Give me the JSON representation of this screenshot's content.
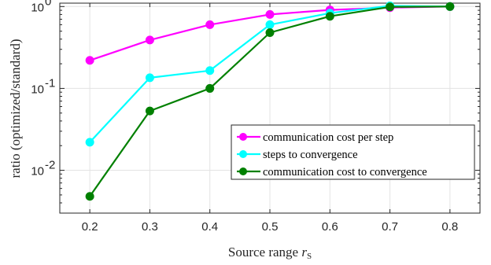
{
  "chart_data": {
    "type": "line",
    "xlabel": "Source range",
    "xlabel_symbol": "r",
    "xlabel_subscript": "S",
    "ylabel": "ratio (optimized/standard)",
    "x": [
      0.2,
      0.3,
      0.4,
      0.5,
      0.6,
      0.7,
      0.8
    ],
    "xlim": [
      0.15,
      0.85
    ],
    "ylim": [
      0.003,
      1.1
    ],
    "yscale": "log",
    "grid": true,
    "legend_position": "lower-right",
    "x_tick_labels": [
      "0.2",
      "0.3",
      "0.4",
      "0.5",
      "0.6",
      "0.7",
      "0.8"
    ],
    "y_ticks": [
      {
        "value": 0.01,
        "base": "10",
        "exp": "-2"
      },
      {
        "value": 0.1,
        "base": "10",
        "exp": "-1"
      },
      {
        "value": 1,
        "base": "10",
        "exp": "0"
      }
    ],
    "series": [
      {
        "name": "communication cost per step",
        "color": "#ff00ff",
        "values": [
          0.22,
          0.39,
          0.6,
          0.8,
          0.91,
          0.97,
          1.0
        ]
      },
      {
        "name": "steps to convergence",
        "color": "#00ffff",
        "values": [
          0.022,
          0.135,
          0.165,
          0.6,
          0.83,
          1.02,
          1.0
        ]
      },
      {
        "name": "communication cost to convergence",
        "color": "#008000",
        "values": [
          0.0048,
          0.053,
          0.1,
          0.48,
          0.76,
          0.99,
          1.0
        ]
      }
    ]
  }
}
